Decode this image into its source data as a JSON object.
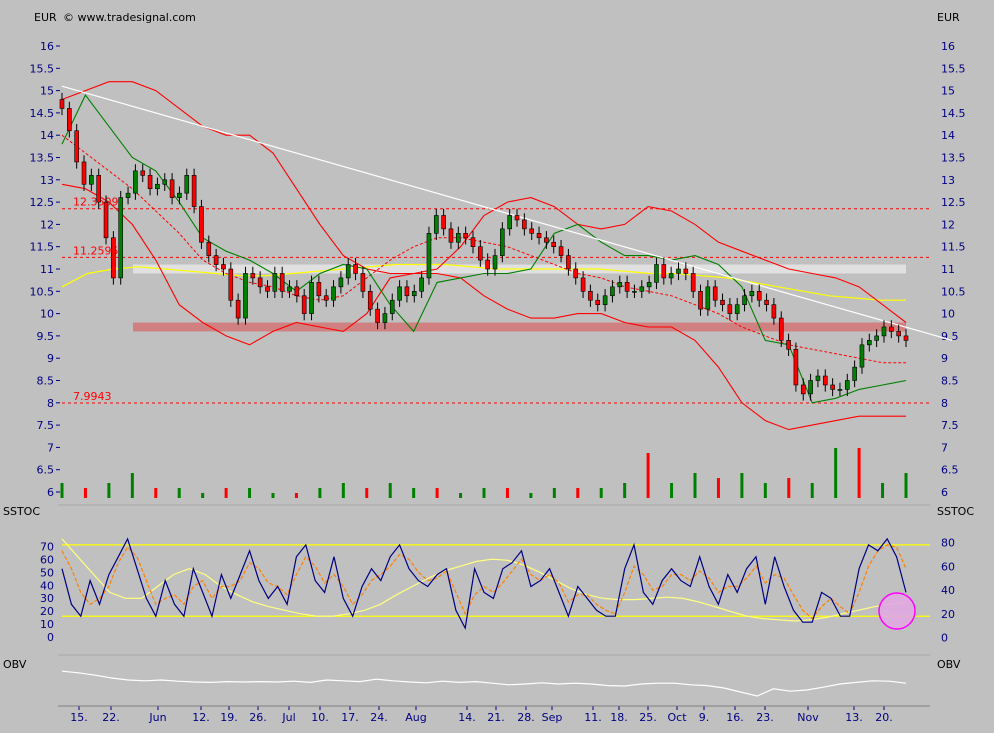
{
  "header": {
    "currency_left": "EUR",
    "currency_right": "EUR",
    "copyright": "© www.tradesignal.com"
  },
  "panels": {
    "sstoc_left": "SSTOC",
    "sstoc_right": "SSTOC",
    "obv_left": "OBV",
    "obv_right": "OBV"
  },
  "price_axis_ticks": [
    "16",
    "15.5",
    "15",
    "14.5",
    "14",
    "13.5",
    "13",
    "12.5",
    "12",
    "11.5",
    "11",
    "10.5",
    "10",
    "9.5",
    "9",
    "8.5",
    "8",
    "7.5",
    "7",
    "6.5",
    "6"
  ],
  "sstoc_left_ticks": [
    "70",
    "60",
    "50",
    "40",
    "30",
    "20",
    "10",
    "0"
  ],
  "sstoc_right_ticks": [
    "80",
    "60",
    "40",
    "20",
    "0"
  ],
  "x_axis_labels": [
    "15.",
    "22.",
    "Jun",
    "12.",
    "19.",
    "26.",
    "Jul",
    "10.",
    "17.",
    "24.",
    "Aug",
    "14.",
    "21.",
    "28.",
    "Sep",
    "11.",
    "18.",
    "25.",
    "Oct",
    "9.",
    "16.",
    "23.",
    "Nov",
    "13.",
    "20."
  ],
  "reference_lines": [
    {
      "label": "12.3509",
      "value": 12.3509,
      "color": "#ff0000"
    },
    {
      "label": "11.2595",
      "value": 11.2595,
      "color": "#ff0000"
    },
    {
      "label": "7.9943",
      "value": 7.9943,
      "color": "#ff0000"
    }
  ],
  "zones": [
    {
      "name": "resistance-zone",
      "from": 9.6,
      "to": 9.8,
      "color": "#d08080"
    },
    {
      "name": "upper-zone",
      "from": 10.9,
      "to": 11.1,
      "color": "#e0e0e0"
    }
  ],
  "colors": {
    "background": "#c0c0c0",
    "axis_text": "#000080",
    "bollinger": "#ff0000",
    "envelope": "#008000",
    "moving_average": "#ffff00",
    "trendline": "#ffffff",
    "candle_up": "#008000",
    "candle_down": "#ff0000",
    "stoch_k": "#000080",
    "stoch_d": "#ff8000",
    "stoch_slow": "#ffff80",
    "obv": "#ffffff",
    "highlight_circle": "#ff00ff"
  },
  "chart_data": [
    {
      "type": "candlestick",
      "name": "price",
      "ylim": [
        5.8,
        16.4
      ],
      "closes": [
        14.6,
        14.1,
        13.4,
        12.9,
        13.1,
        12.5,
        11.7,
        10.8,
        12.6,
        12.7,
        13.2,
        13.1,
        12.8,
        12.9,
        13.0,
        12.6,
        12.7,
        13.1,
        12.4,
        11.6,
        11.3,
        11.1,
        11.0,
        10.3,
        9.9,
        10.9,
        10.8,
        10.6,
        10.5,
        10.9,
        10.5,
        10.6,
        10.4,
        10.0,
        10.7,
        10.4,
        10.3,
        10.6,
        10.8,
        11.1,
        10.9,
        10.5,
        10.1,
        9.8,
        10.0,
        10.3,
        10.6,
        10.4,
        10.5,
        10.8,
        11.8,
        12.2,
        11.9,
        11.6,
        11.8,
        11.7,
        11.5,
        11.2,
        11.0,
        11.3,
        11.9,
        12.2,
        12.1,
        11.9,
        11.8,
        11.7,
        11.6,
        11.5,
        11.3,
        11.0,
        10.8,
        10.5,
        10.3,
        10.2,
        10.4,
        10.6,
        10.7,
        10.5,
        10.5,
        10.6,
        10.7,
        11.1,
        10.8,
        10.9,
        11.0,
        10.9,
        10.5,
        10.1,
        10.6,
        10.3,
        10.2,
        10.0,
        10.2,
        10.4,
        10.5,
        10.3,
        10.2,
        9.9,
        9.4,
        9.2,
        8.4,
        8.2,
        8.5,
        8.6,
        8.4,
        8.3,
        8.3,
        8.5,
        8.8,
        9.3,
        9.4,
        9.5,
        9.7,
        9.6,
        9.5,
        9.4
      ],
      "bollinger_upper": [
        14.8,
        15.0,
        15.2,
        15.2,
        15.0,
        14.6,
        14.2,
        14.0,
        14.0,
        13.6,
        12.8,
        12.0,
        11.3,
        11.0,
        10.9,
        10.9,
        11.0,
        11.5,
        12.2,
        12.5,
        12.6,
        12.4,
        12.0,
        11.9,
        12.0,
        12.4,
        12.3,
        12.0,
        11.6,
        11.4,
        11.2,
        11.0,
        10.9,
        10.8,
        10.6,
        10.2,
        9.8
      ],
      "bollinger_mid": [
        14.0,
        13.6,
        13.2,
        12.8,
        12.3,
        11.8,
        11.2,
        10.9,
        10.7,
        10.6,
        10.4,
        10.3,
        10.4,
        10.8,
        11.2,
        11.5,
        11.7,
        11.7,
        11.6,
        11.5,
        11.3,
        11.1,
        10.9,
        10.8,
        10.6,
        10.5,
        10.4,
        10.2,
        10.0,
        9.7,
        9.5,
        9.3,
        9.2,
        9.1,
        9.0,
        8.9,
        8.9
      ],
      "bollinger_lower": [
        12.9,
        12.8,
        12.5,
        12.0,
        11.2,
        10.2,
        9.8,
        9.5,
        9.3,
        9.6,
        9.8,
        9.7,
        9.6,
        10.0,
        10.8,
        10.9,
        10.9,
        10.8,
        10.4,
        10.1,
        9.9,
        9.9,
        10.0,
        10.0,
        9.8,
        9.7,
        9.7,
        9.4,
        8.8,
        8.0,
        7.6,
        7.4,
        7.5,
        7.6,
        7.7,
        7.7,
        7.7
      ],
      "envelope": [
        13.8,
        14.9,
        14.2,
        13.5,
        13.2,
        12.5,
        11.7,
        11.4,
        11.2,
        10.9,
        10.5,
        10.9,
        11.1,
        11.0,
        10.2,
        9.6,
        10.7,
        10.8,
        10.9,
        10.9,
        11.0,
        11.8,
        12.0,
        11.6,
        11.3,
        11.3,
        11.2,
        11.3,
        11.1,
        10.6,
        9.4,
        9.3,
        8.0,
        8.1,
        8.3,
        8.4,
        8.5
      ],
      "moving_average": [
        10.6,
        10.9,
        11.0,
        11.05,
        11.0,
        10.95,
        10.9,
        10.85,
        10.85,
        10.9,
        10.95,
        11.0,
        11.05,
        11.1,
        11.1,
        11.1,
        11.05,
        11.0,
        11.0,
        11.0,
        11.0,
        11.0,
        10.95,
        10.9,
        10.9,
        10.85,
        10.8,
        10.7,
        10.6,
        10.5,
        10.4,
        10.35,
        10.3,
        10.3
      ],
      "volume_relative": [
        0.3,
        0.2,
        0.3,
        0.5,
        0.2,
        0.2,
        0.1,
        0.2,
        0.2,
        0.1,
        0.1,
        0.2,
        0.3,
        0.2,
        0.3,
        0.2,
        0.2,
        0.1,
        0.2,
        0.2,
        0.1,
        0.2,
        0.2,
        0.2,
        0.3,
        0.9,
        0.3,
        0.5,
        0.4,
        0.5,
        0.3,
        0.4,
        0.3,
        1.0,
        1.0,
        0.3,
        0.5
      ]
    },
    {
      "type": "line",
      "name": "SSTOC",
      "ylim": [
        0,
        90
      ],
      "reference_levels": [
        80,
        20
      ],
      "k": [
        60,
        30,
        20,
        50,
        30,
        55,
        70,
        85,
        60,
        35,
        20,
        50,
        30,
        20,
        60,
        40,
        20,
        55,
        35,
        55,
        75,
        50,
        35,
        45,
        30,
        70,
        80,
        50,
        40,
        70,
        35,
        20,
        45,
        60,
        50,
        70,
        80,
        60,
        50,
        45,
        55,
        60,
        25,
        10,
        60,
        40,
        35,
        60,
        65,
        75,
        45,
        50,
        60,
        40,
        20,
        45,
        35,
        25,
        20,
        20,
        60,
        80,
        40,
        30,
        50,
        60,
        50,
        45,
        70,
        45,
        30,
        55,
        40,
        60,
        70,
        30,
        70,
        45,
        25,
        15,
        15,
        40,
        35,
        20,
        20,
        60,
        80,
        75,
        85,
        70,
        40
      ],
      "d": [
        75,
        60,
        40,
        30,
        35,
        45,
        65,
        78,
        70,
        50,
        30,
        35,
        38,
        30,
        45,
        50,
        35,
        45,
        45,
        50,
        65,
        60,
        48,
        45,
        38,
        55,
        70,
        62,
        48,
        55,
        45,
        30,
        38,
        50,
        55,
        62,
        72,
        68,
        57,
        50,
        52,
        58,
        40,
        22,
        38,
        45,
        40,
        48,
        58,
        68,
        55,
        50,
        55,
        48,
        32,
        38,
        38,
        30,
        25,
        22,
        40,
        62,
        55,
        42,
        45,
        55,
        55,
        50,
        58,
        52,
        40,
        45,
        45,
        52,
        62,
        48,
        55,
        52,
        38,
        25,
        18,
        28,
        35,
        28,
        22,
        40,
        62,
        75,
        80,
        78,
        60
      ],
      "slow": [
        85,
        70,
        55,
        40,
        35,
        35,
        45,
        55,
        60,
        55,
        45,
        38,
        32,
        28,
        25,
        22,
        20,
        20,
        22,
        25,
        30,
        38,
        45,
        52,
        58,
        62,
        66,
        68,
        67,
        63,
        57,
        50,
        43,
        38,
        35,
        34,
        34,
        35,
        36,
        35,
        32,
        28,
        24,
        20,
        18,
        17,
        16,
        17,
        19,
        22,
        25,
        28,
        30,
        32
      ]
    },
    {
      "type": "line",
      "name": "OBV",
      "values": [
        0.72,
        0.68,
        0.62,
        0.55,
        0.5,
        0.48,
        0.5,
        0.47,
        0.45,
        0.44,
        0.46,
        0.45,
        0.46,
        0.45,
        0.47,
        0.44,
        0.5,
        0.48,
        0.46,
        0.52,
        0.48,
        0.45,
        0.43,
        0.47,
        0.44,
        0.46,
        0.42,
        0.38,
        0.4,
        0.43,
        0.4,
        0.42,
        0.4,
        0.36,
        0.35,
        0.4,
        0.42,
        0.42,
        0.38,
        0.36,
        0.3,
        0.2,
        0.1,
        0.28,
        0.22,
        0.25,
        0.32,
        0.4,
        0.44,
        0.48,
        0.47,
        0.42
      ]
    }
  ]
}
